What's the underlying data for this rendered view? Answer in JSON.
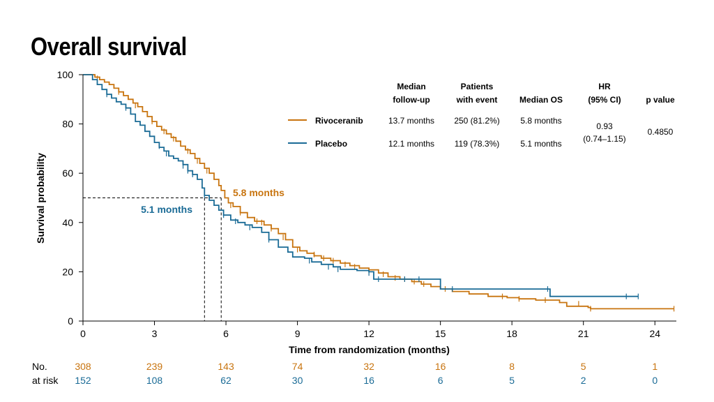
{
  "title": "Overall survival",
  "colors": {
    "rivoceranib": "#c8740f",
    "placebo": "#1a6b96",
    "axis": "#000000"
  },
  "chart_data": {
    "type": "line",
    "subtype": "kaplan-meier",
    "xlabel": "Time from randomization (months)",
    "ylabel": "Survival probability",
    "xlim": [
      0,
      24.9
    ],
    "ylim": [
      0,
      100
    ],
    "xticks": [
      0,
      3,
      6,
      9,
      12,
      15,
      18,
      21,
      24
    ],
    "yticks": [
      0,
      20,
      40,
      60,
      80,
      100
    ],
    "medians": [
      {
        "series": "Rivoceranib",
        "x": 5.8,
        "y": 50,
        "label": "5.8 months"
      },
      {
        "series": "Placebo",
        "x": 5.1,
        "y": 50,
        "label": "5.1 months"
      }
    ],
    "series": [
      {
        "name": "Rivoceranib",
        "color": "#c8740f",
        "points": [
          [
            0,
            100
          ],
          [
            0.5,
            99
          ],
          [
            0.7,
            98
          ],
          [
            0.9,
            97
          ],
          [
            1.1,
            96
          ],
          [
            1.3,
            94.5
          ],
          [
            1.5,
            93
          ],
          [
            1.7,
            91.5
          ],
          [
            1.9,
            90
          ],
          [
            2.1,
            88.5
          ],
          [
            2.3,
            87
          ],
          [
            2.5,
            85
          ],
          [
            2.7,
            83
          ],
          [
            2.9,
            81
          ],
          [
            3.1,
            79
          ],
          [
            3.3,
            77.5
          ],
          [
            3.5,
            76
          ],
          [
            3.7,
            74.5
          ],
          [
            3.9,
            73
          ],
          [
            4.1,
            71
          ],
          [
            4.3,
            69.5
          ],
          [
            4.5,
            68
          ],
          [
            4.7,
            66
          ],
          [
            4.9,
            64
          ],
          [
            5.1,
            62
          ],
          [
            5.3,
            60
          ],
          [
            5.5,
            57.5
          ],
          [
            5.7,
            55
          ],
          [
            5.8,
            53
          ],
          [
            5.95,
            50
          ],
          [
            6.1,
            48
          ],
          [
            6.3,
            46.5
          ],
          [
            6.6,
            44
          ],
          [
            6.9,
            42
          ],
          [
            7.2,
            40.5
          ],
          [
            7.6,
            39
          ],
          [
            7.9,
            37.5
          ],
          [
            8.2,
            35.5
          ],
          [
            8.5,
            33
          ],
          [
            8.8,
            30
          ],
          [
            9.1,
            28.5
          ],
          [
            9.4,
            27.5
          ],
          [
            9.7,
            26.5
          ],
          [
            10.0,
            25.5
          ],
          [
            10.4,
            24.5
          ],
          [
            10.8,
            23.5
          ],
          [
            11.2,
            22.5
          ],
          [
            11.6,
            21.5
          ],
          [
            12.0,
            20.8
          ],
          [
            12.4,
            19.5
          ],
          [
            12.8,
            18
          ],
          [
            13.3,
            17
          ],
          [
            13.8,
            16
          ],
          [
            14.2,
            15
          ],
          [
            14.6,
            14
          ],
          [
            15.0,
            13
          ],
          [
            15.5,
            12
          ],
          [
            16.2,
            11
          ],
          [
            17.0,
            10
          ],
          [
            17.8,
            9.5
          ],
          [
            18.3,
            9
          ],
          [
            19.0,
            8.5
          ],
          [
            20.0,
            7.5
          ],
          [
            20.3,
            6
          ],
          [
            21.2,
            5.5
          ],
          [
            21.3,
            5
          ],
          [
            24.8,
            5
          ]
        ],
        "censors": [
          [
            0.6,
            98.5
          ],
          [
            1.5,
            93
          ],
          [
            2.2,
            87.5
          ],
          [
            2.9,
            81
          ],
          [
            3.4,
            77
          ],
          [
            3.8,
            74
          ],
          [
            4.4,
            69
          ],
          [
            4.8,
            65
          ],
          [
            5.2,
            61
          ],
          [
            6.2,
            47
          ],
          [
            6.6,
            44
          ],
          [
            7.3,
            40.5
          ],
          [
            7.5,
            40
          ],
          [
            7.9,
            37.5
          ],
          [
            8.4,
            34
          ],
          [
            9.0,
            29
          ],
          [
            9.7,
            27
          ],
          [
            10.1,
            25.5
          ],
          [
            10.5,
            24.5
          ],
          [
            11.0,
            23
          ],
          [
            11.4,
            22
          ],
          [
            12.0,
            20.5
          ],
          [
            12.6,
            19
          ],
          [
            13.1,
            17.5
          ],
          [
            13.5,
            17
          ],
          [
            13.9,
            16
          ],
          [
            14.3,
            15
          ],
          [
            15.2,
            13
          ],
          [
            17.6,
            10
          ],
          [
            18.3,
            9
          ],
          [
            19.4,
            8.5
          ],
          [
            20.8,
            7
          ],
          [
            21.3,
            5
          ],
          [
            24.8,
            5
          ]
        ]
      },
      {
        "name": "Placebo",
        "color": "#1a6b96",
        "points": [
          [
            0,
            100
          ],
          [
            0.4,
            98
          ],
          [
            0.6,
            96
          ],
          [
            0.8,
            94
          ],
          [
            1.0,
            92
          ],
          [
            1.2,
            90.5
          ],
          [
            1.4,
            89
          ],
          [
            1.6,
            88
          ],
          [
            1.8,
            86.5
          ],
          [
            2.0,
            84
          ],
          [
            2.2,
            81
          ],
          [
            2.4,
            79.5
          ],
          [
            2.6,
            77
          ],
          [
            2.8,
            75
          ],
          [
            3.0,
            72.5
          ],
          [
            3.2,
            70.5
          ],
          [
            3.4,
            69
          ],
          [
            3.6,
            67
          ],
          [
            3.8,
            66
          ],
          [
            4.0,
            65
          ],
          [
            4.2,
            63.5
          ],
          [
            4.4,
            61
          ],
          [
            4.6,
            59.5
          ],
          [
            4.8,
            57.5
          ],
          [
            5.0,
            54
          ],
          [
            5.1,
            51
          ],
          [
            5.3,
            49
          ],
          [
            5.5,
            47
          ],
          [
            5.7,
            45
          ],
          [
            5.9,
            43
          ],
          [
            6.2,
            41
          ],
          [
            6.5,
            40
          ],
          [
            6.8,
            39
          ],
          [
            7.1,
            38
          ],
          [
            7.5,
            36
          ],
          [
            7.8,
            33
          ],
          [
            8.2,
            30
          ],
          [
            8.6,
            28
          ],
          [
            8.8,
            26
          ],
          [
            9.3,
            25.5
          ],
          [
            9.6,
            24
          ],
          [
            10.0,
            23
          ],
          [
            10.5,
            22
          ],
          [
            10.8,
            21
          ],
          [
            11.5,
            20.5
          ],
          [
            12.0,
            20
          ],
          [
            12.2,
            17
          ],
          [
            14.9,
            17
          ],
          [
            15.0,
            13
          ],
          [
            19.5,
            13
          ],
          [
            19.6,
            10
          ],
          [
            23.3,
            10
          ]
        ],
        "censors": [
          [
            1.0,
            92
          ],
          [
            1.8,
            86.5
          ],
          [
            3.2,
            71
          ],
          [
            3.5,
            68
          ],
          [
            4.2,
            63
          ],
          [
            4.4,
            61
          ],
          [
            4.6,
            59.5
          ],
          [
            5.1,
            51
          ],
          [
            5.9,
            43
          ],
          [
            6.4,
            40.5
          ],
          [
            7.0,
            38
          ],
          [
            7.8,
            33
          ],
          [
            9.5,
            24.5
          ],
          [
            10.3,
            22
          ],
          [
            10.7,
            21
          ],
          [
            12.0,
            19.5
          ],
          [
            12.4,
            17
          ],
          [
            13.5,
            17
          ],
          [
            14.1,
            17
          ],
          [
            15.5,
            13
          ],
          [
            19.5,
            13
          ],
          [
            22.8,
            10
          ],
          [
            23.3,
            10
          ]
        ]
      }
    ],
    "legend": {
      "position": "top-right",
      "columns": [
        "Median follow-up",
        "Patients with event",
        "Median OS",
        "HR (95% CI)",
        "p value"
      ],
      "rows": [
        {
          "name": "Rivoceranib",
          "median_followup": "13.7 months",
          "patients_with_event": "250 (81.2%)",
          "median_os": "5.8 months"
        },
        {
          "name": "Placebo",
          "median_followup": "12.1 months",
          "patients_with_event": "119 (78.3%)",
          "median_os": "5.1 months"
        }
      ],
      "hr": "0.93",
      "ci": "(0.74–1.15)",
      "p_value": "0.4850"
    },
    "at_risk": {
      "label_line1": "No.",
      "label_line2": "at risk",
      "times": [
        0,
        3,
        6,
        9,
        12,
        15,
        18,
        21,
        24
      ],
      "rivoceranib": [
        308,
        239,
        143,
        74,
        32,
        16,
        8,
        5,
        1
      ],
      "placebo": [
        152,
        108,
        62,
        30,
        16,
        6,
        5,
        2,
        0
      ]
    }
  }
}
